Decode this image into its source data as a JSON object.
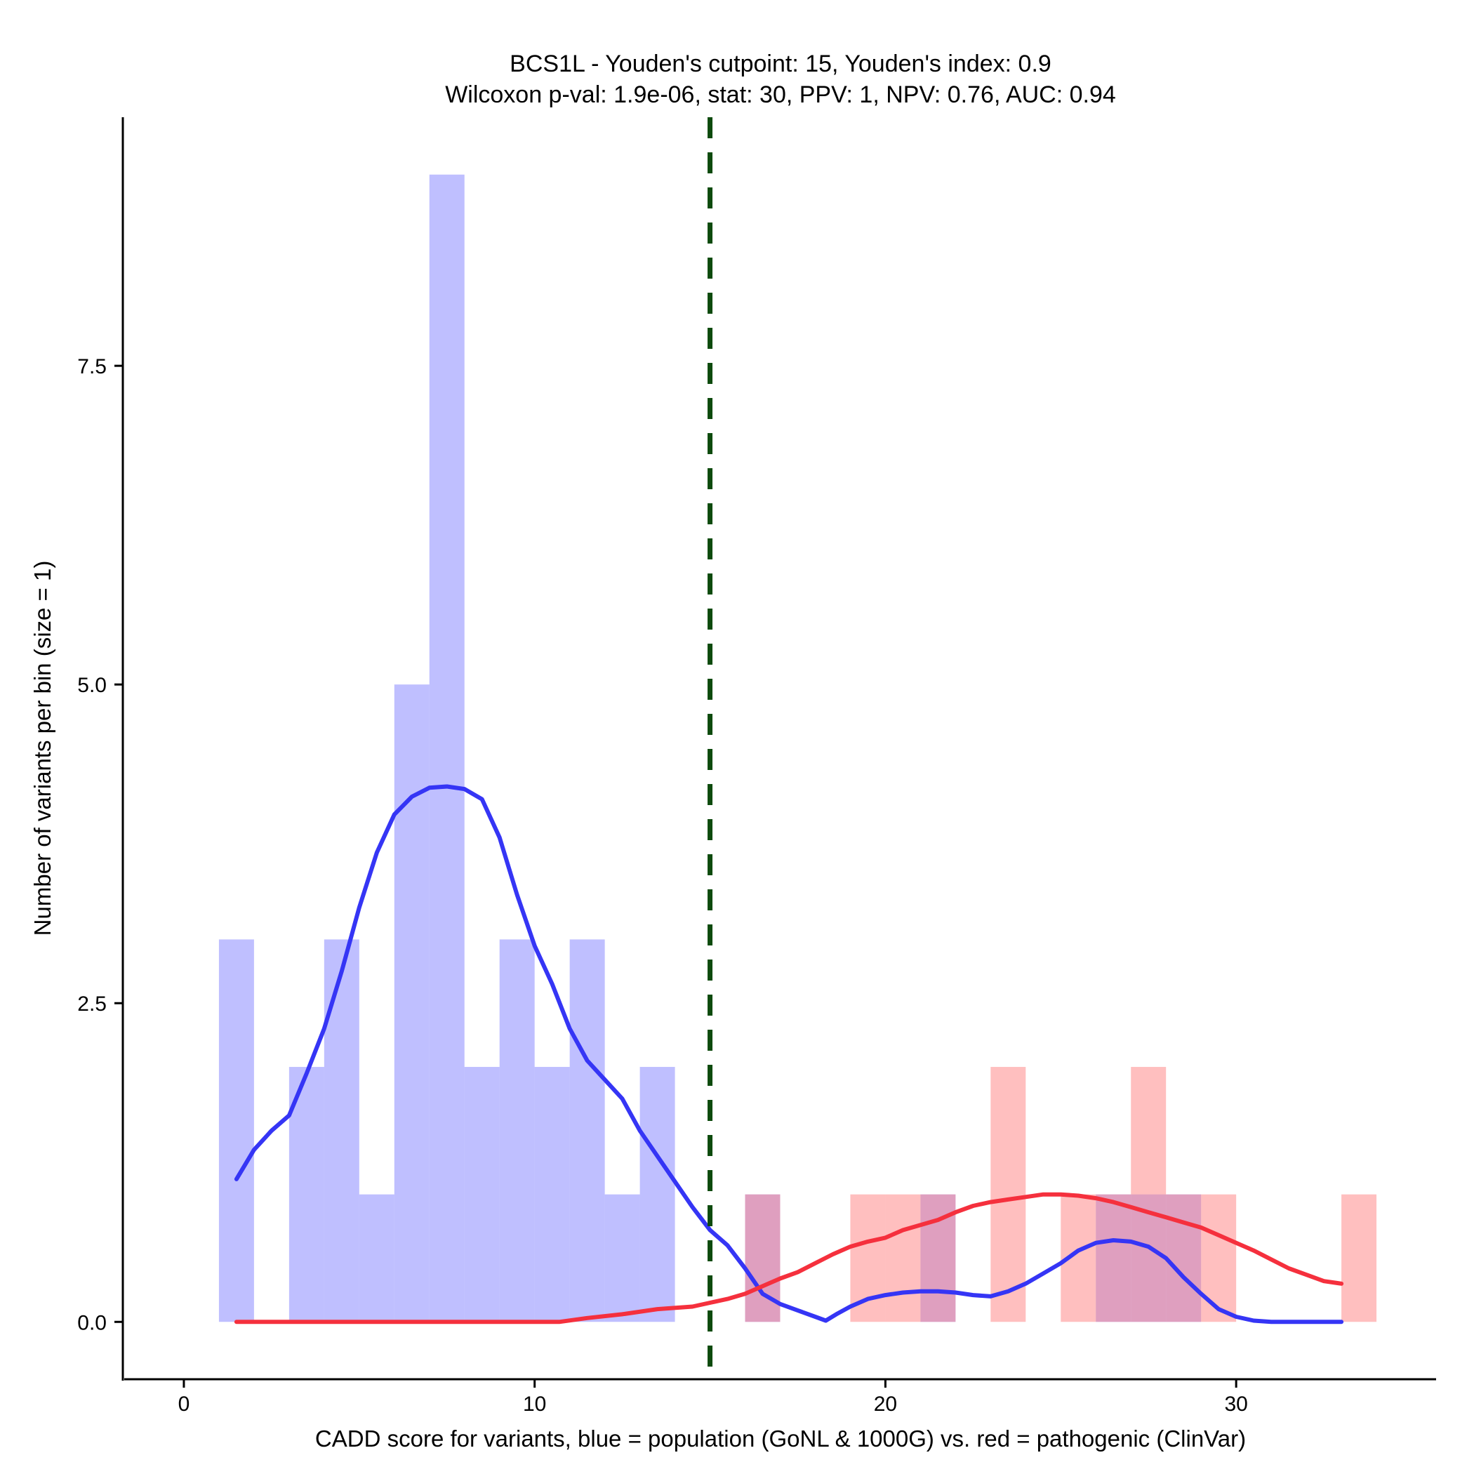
{
  "chart_data": {
    "type": "bar",
    "title": "BCS1L - Youden's cutpoint: 15, Youden's index: 0.9",
    "subtitle": "Wilcoxon p-val: 1.9e-06, stat: 30, PPV: 1, NPV: 0.76, AUC: 0.94",
    "xlabel": "CADD score for variants, blue = population (GoNL & 1000G) vs. red = pathogenic (ClinVar)",
    "ylabel": "Number of variants per bin (size = 1)",
    "xlim": [
      -1.7,
      35.7
    ],
    "ylim": [
      -0.45,
      9.45
    ],
    "x_ticks": [
      0,
      10,
      20,
      30
    ],
    "x_tick_labels": [
      "0",
      "10",
      "20",
      "30"
    ],
    "y_ticks": [
      0,
      2.5,
      5,
      7.5
    ],
    "y_tick_labels": [
      "0.0",
      "2.5",
      "5.0",
      "7.5"
    ],
    "bin_width": 1,
    "cutpoint": 15,
    "colors": {
      "population_bar": "#8080ff",
      "pathogenic_bar": "#ff8080",
      "population_line": "#3535f5",
      "pathogenic_line": "#f5303d",
      "cutpoint_line": "#0d4a0d"
    },
    "series": [
      {
        "name": "population (GoNL & 1000G)",
        "bins_start": [
          1,
          2,
          3,
          4,
          5,
          6,
          7,
          8,
          9,
          10,
          11,
          12,
          13,
          14,
          15,
          16,
          17,
          18,
          19,
          20,
          21,
          22,
          23,
          24,
          25,
          26,
          27,
          28
        ],
        "counts": [
          3,
          0,
          2,
          3,
          1,
          5,
          9,
          2,
          3,
          2,
          3,
          1,
          2,
          0,
          0,
          1,
          0,
          0,
          0,
          0,
          1,
          0,
          0,
          0,
          0,
          1,
          1,
          1
        ]
      },
      {
        "name": "pathogenic (ClinVar)",
        "bins_start": [
          16,
          19,
          20,
          21,
          23,
          25,
          26,
          27,
          28,
          29,
          33
        ],
        "counts": [
          1,
          1,
          1,
          1,
          2,
          1,
          1,
          2,
          1,
          1,
          1
        ]
      }
    ],
    "density_lines": [
      {
        "name": "population (GoNL & 1000G)",
        "x": [
          1.5,
          2.0,
          2.5,
          3.0,
          3.5,
          4.0,
          4.5,
          5.0,
          5.5,
          6.0,
          6.5,
          7.0,
          7.5,
          8.0,
          8.5,
          9.0,
          9.5,
          10.0,
          10.5,
          11.0,
          11.5,
          12.0,
          12.5,
          13.0,
          13.5,
          14.0,
          14.5,
          15.0,
          15.5,
          16.0,
          16.5,
          17.0,
          17.5,
          18.0,
          18.3,
          18.6,
          19.0,
          19.5,
          20.0,
          20.5,
          21.0,
          21.5,
          22.0,
          22.5,
          23.0,
          23.5,
          24.0,
          24.5,
          25.0,
          25.5,
          26.0,
          26.5,
          27.0,
          27.5,
          28.0,
          28.5,
          29.0,
          29.5,
          30.0,
          30.5,
          31.0,
          31.5,
          32.0,
          32.5,
          33.0
        ],
        "y": [
          1.12,
          1.35,
          1.5,
          1.62,
          1.95,
          2.3,
          2.75,
          3.25,
          3.68,
          3.98,
          4.12,
          4.19,
          4.2,
          4.18,
          4.1,
          3.8,
          3.35,
          2.95,
          2.65,
          2.3,
          2.05,
          1.9,
          1.75,
          1.5,
          1.3,
          1.1,
          0.9,
          0.72,
          0.6,
          0.42,
          0.22,
          0.14,
          0.09,
          0.04,
          0.01,
          0.06,
          0.12,
          0.18,
          0.21,
          0.23,
          0.24,
          0.24,
          0.23,
          0.21,
          0.2,
          0.24,
          0.3,
          0.38,
          0.46,
          0.56,
          0.62,
          0.64,
          0.63,
          0.59,
          0.5,
          0.35,
          0.22,
          0.1,
          0.04,
          0.01,
          0.0,
          0.0,
          0.0,
          0.0,
          0.0
        ]
      },
      {
        "name": "pathogenic (ClinVar)",
        "x": [
          1.5,
          3.0,
          5.0,
          7.0,
          9.0,
          10.7,
          11.5,
          12.5,
          13.5,
          14.5,
          15.0,
          15.5,
          16.0,
          16.5,
          17.0,
          17.5,
          18.0,
          18.5,
          19.0,
          19.5,
          20.0,
          20.5,
          21.0,
          21.5,
          22.0,
          22.5,
          23.0,
          23.5,
          24.0,
          24.5,
          25.0,
          25.5,
          26.0,
          26.5,
          27.0,
          27.5,
          28.0,
          28.5,
          29.0,
          29.5,
          30.0,
          30.5,
          31.0,
          31.5,
          32.0,
          32.5,
          33.0
        ],
        "y": [
          0.0,
          0.0,
          0.0,
          0.0,
          0.0,
          0.0,
          0.03,
          0.06,
          0.1,
          0.12,
          0.15,
          0.18,
          0.22,
          0.28,
          0.34,
          0.39,
          0.46,
          0.53,
          0.59,
          0.63,
          0.66,
          0.72,
          0.76,
          0.8,
          0.86,
          0.91,
          0.94,
          0.96,
          0.98,
          1.0,
          1.0,
          0.99,
          0.97,
          0.94,
          0.9,
          0.86,
          0.82,
          0.78,
          0.74,
          0.68,
          0.62,
          0.56,
          0.49,
          0.42,
          0.37,
          0.32,
          0.3
        ]
      }
    ]
  }
}
